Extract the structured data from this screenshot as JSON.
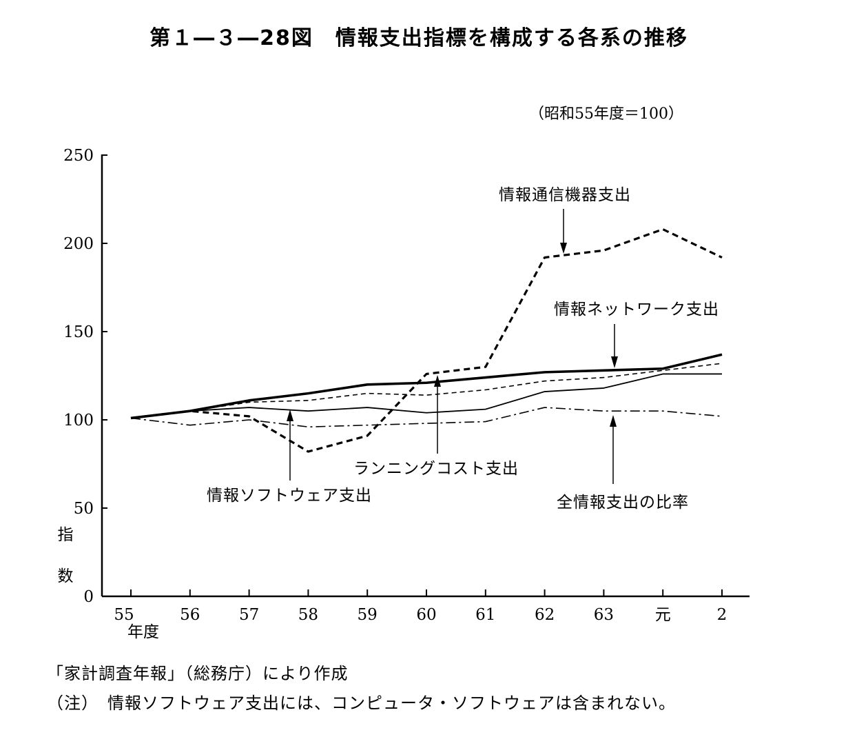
{
  "title": "第１―３―28図　情報支出指標を構成する各系の推移",
  "chart_data": {
    "type": "line",
    "unit_note": "（昭和55年度＝100）",
    "ylabel": [
      "指",
      "数"
    ],
    "xlabel": "年度",
    "ylim": [
      0,
      250
    ],
    "yticks": [
      0,
      50,
      100,
      150,
      200,
      250
    ],
    "categories": [
      "55",
      "56",
      "57",
      "58",
      "59",
      "60",
      "61",
      "62",
      "63",
      "元",
      "2"
    ],
    "grid": false,
    "series": [
      {
        "name": "情報通信機器支出",
        "style": "dashed-bold",
        "values": [
          101,
          105,
          102,
          82,
          91,
          126,
          130,
          192,
          196,
          208,
          192
        ]
      },
      {
        "name": "情報ネットワーク支出",
        "style": "solid-bold",
        "values": [
          101,
          105,
          111,
          115,
          120,
          121,
          124,
          127,
          128,
          129,
          137
        ]
      },
      {
        "name": "ランニングコスト支出",
        "style": "dashed-thin",
        "values": [
          101,
          105,
          110,
          111,
          115,
          114,
          117,
          122,
          124,
          128,
          132
        ]
      },
      {
        "name": "情報ソフトウェア支出",
        "style": "solid-thin",
        "values": [
          101,
          105,
          107,
          105,
          107,
          104,
          106,
          116,
          118,
          126,
          126
        ]
      },
      {
        "name": "全情報支出の比率",
        "style": "dash-dot",
        "values": [
          101,
          97,
          100,
          96,
          97,
          98,
          99,
          107,
          105,
          105,
          102
        ]
      }
    ]
  },
  "source_note": "「家計調査年報」（総務庁）により作成",
  "footnote": "（注）　情報ソフトウェア支出には、コンピュータ・ソフトウェアは含まれない。"
}
